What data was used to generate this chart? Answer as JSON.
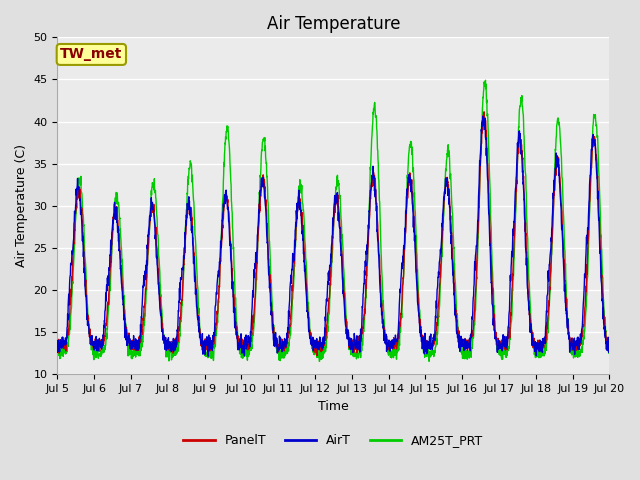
{
  "title": "Air Temperature",
  "xlabel": "Time",
  "ylabel": "Air Temperature (C)",
  "ylim": [
    10,
    50
  ],
  "yticks": [
    10,
    15,
    20,
    25,
    30,
    35,
    40,
    45,
    50
  ],
  "annotation_text": "TW_met",
  "annotation_color": "#8B0000",
  "annotation_bg": "#FFFF99",
  "annotation_border": "#999900",
  "line_colors": {
    "PanelT": "#CC0000",
    "AirT": "#0000CC",
    "AM25T_PRT": "#00CC00"
  },
  "line_widths": {
    "PanelT": 1.0,
    "AirT": 1.0,
    "AM25T_PRT": 1.0
  },
  "background_color": "#E0E0E0",
  "plot_bg_color": "#EBEBEB",
  "title_fontsize": 12,
  "label_fontsize": 9,
  "tick_fontsize": 8,
  "legend_fontsize": 9,
  "n_points": 2000
}
